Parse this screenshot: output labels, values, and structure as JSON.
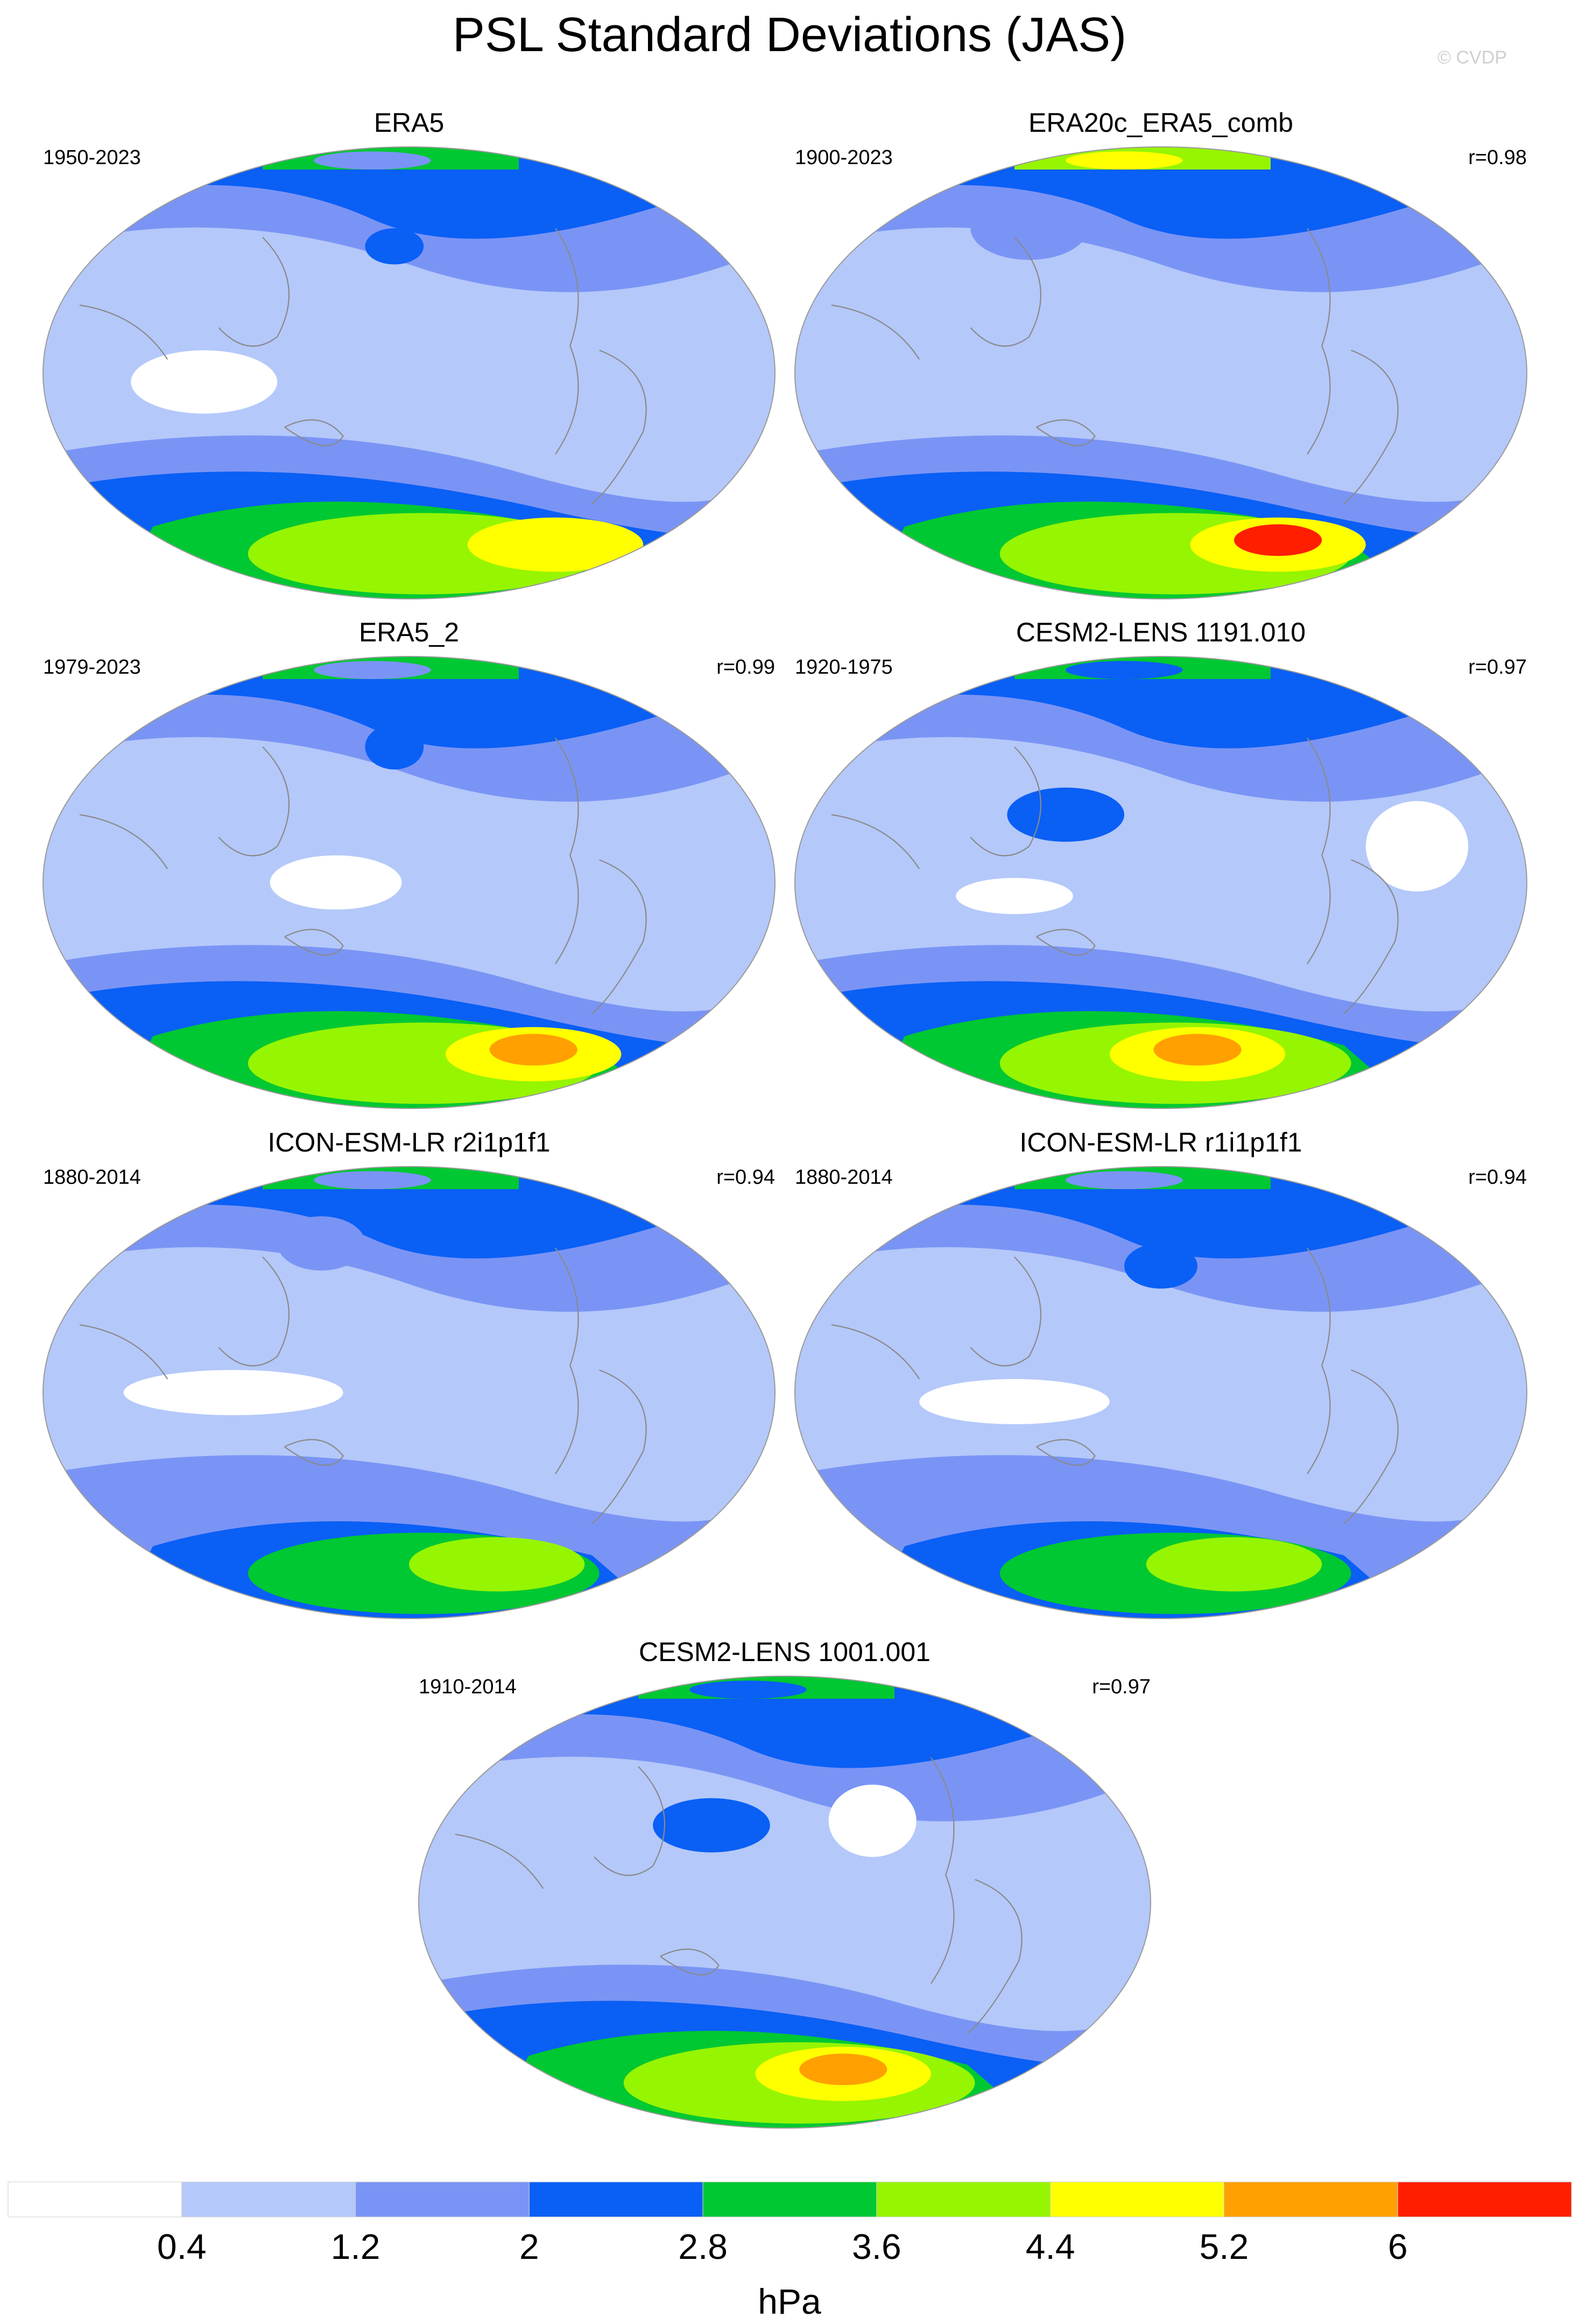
{
  "title": "PSL Standard Deviations (JAS)",
  "credit": "© CVDP",
  "panels": [
    {
      "title": "ERA5",
      "years": "1950-2023",
      "corr": ""
    },
    {
      "title": "ERA20c_ERA5_comb",
      "years": "1900-2023",
      "corr": "r=0.98"
    },
    {
      "title": "ERA5_2",
      "years": "1979-2023",
      "corr": "r=0.99"
    },
    {
      "title": "CESM2-LENS 1191.010",
      "years": "1920-1975",
      "corr": "r=0.97"
    },
    {
      "title": "ICON-ESM-LR r2i1p1f1",
      "years": "1880-2014",
      "corr": "r=0.94"
    },
    {
      "title": "ICON-ESM-LR r1i1p1f1",
      "years": "1880-2014",
      "corr": "r=0.94"
    },
    {
      "title": "CESM2-LENS 1001.001",
      "years": "1910-2014",
      "corr": "r=0.97"
    }
  ],
  "colorbar": {
    "levels": [
      "0.4",
      "1.2",
      "2",
      "2.8",
      "3.6",
      "4.4",
      "5.2",
      "6"
    ],
    "colors": [
      "#ffffff",
      "#b4c8fa",
      "#7a94f5",
      "#0a5ff5",
      "#00c832",
      "#96f500",
      "#ffff00",
      "#ffa000",
      "#ff1e00"
    ],
    "unit": "hPa"
  }
}
